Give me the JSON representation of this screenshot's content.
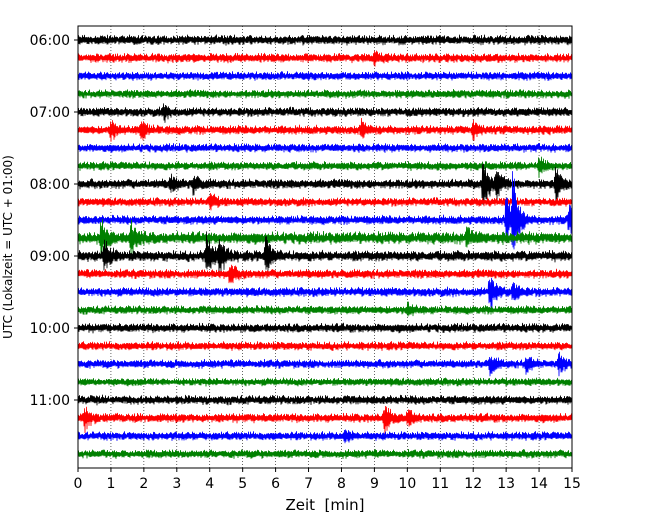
{
  "chart_data": {
    "type": "line",
    "chart_kind": "helicorder (seismogram drum plot)",
    "xlabel": "Zeit  [min]",
    "ylabel": "UTC (Lokalzeit = UTC + 01:00)",
    "xlim": [
      0,
      15
    ],
    "x_ticks": [
      0,
      1,
      2,
      3,
      4,
      5,
      6,
      7,
      8,
      9,
      10,
      11,
      12,
      13,
      14,
      15
    ],
    "x_tick_labels": [
      "0",
      "1",
      "2",
      "3",
      "4",
      "5",
      "6",
      "7",
      "8",
      "9",
      "10",
      "11",
      "12",
      "13",
      "14",
      "15"
    ],
    "y_tick_labels": [
      "06:00",
      "07:00",
      "08:00",
      "09:00",
      "10:00",
      "11:00"
    ],
    "grid": "vertical dotted lines at each minute",
    "line_minutes": 15,
    "trace_colors": [
      "#000000",
      "#ff0000",
      "#0000ff",
      "#008000"
    ],
    "trace_start_times": [
      "06:00",
      "06:15",
      "06:30",
      "06:45",
      "07:00",
      "07:15",
      "07:30",
      "07:45",
      "08:00",
      "08:15",
      "08:30",
      "08:45",
      "09:00",
      "09:15",
      "09:30",
      "09:45",
      "10:00",
      "10:15",
      "10:30",
      "10:45",
      "11:00",
      "11:15",
      "11:30",
      "11:45"
    ],
    "noise_amplitude": [
      0.32,
      0.3,
      0.28,
      0.28,
      0.3,
      0.3,
      0.28,
      0.28,
      0.32,
      0.28,
      0.3,
      0.4,
      0.35,
      0.3,
      0.3,
      0.28,
      0.3,
      0.28,
      0.28,
      0.26,
      0.3,
      0.3,
      0.28,
      0.28
    ],
    "events": [
      {
        "trace": 1,
        "minute": 9.0,
        "amplitude": 0.35
      },
      {
        "trace": 4,
        "minute": 2.6,
        "amplitude": 0.4
      },
      {
        "trace": 5,
        "minute": 1.0,
        "amplitude": 0.6
      },
      {
        "trace": 5,
        "minute": 1.9,
        "amplitude": 0.6
      },
      {
        "trace": 5,
        "minute": 8.6,
        "amplitude": 0.5
      },
      {
        "trace": 5,
        "minute": 12.0,
        "amplitude": 0.45
      },
      {
        "trace": 7,
        "minute": 14.0,
        "amplitude": 0.5
      },
      {
        "trace": 8,
        "minute": 2.8,
        "amplitude": 0.5
      },
      {
        "trace": 8,
        "minute": 3.5,
        "amplitude": 0.5
      },
      {
        "trace": 8,
        "minute": 12.3,
        "amplitude": 1.6
      },
      {
        "trace": 8,
        "minute": 12.7,
        "amplitude": 0.8
      },
      {
        "trace": 8,
        "minute": 14.5,
        "amplitude": 1.0
      },
      {
        "trace": 9,
        "minute": 4.0,
        "amplitude": 0.5
      },
      {
        "trace": 10,
        "minute": 13.0,
        "amplitude": 1.6
      },
      {
        "trace": 10,
        "minute": 13.2,
        "amplitude": 2.6
      },
      {
        "trace": 10,
        "minute": 14.9,
        "amplitude": 1.0
      },
      {
        "trace": 11,
        "minute": 0.7,
        "amplitude": 1.0
      },
      {
        "trace": 11,
        "minute": 1.6,
        "amplitude": 1.0
      },
      {
        "trace": 11,
        "minute": 11.8,
        "amplitude": 0.5
      },
      {
        "trace": 12,
        "minute": 0.8,
        "amplitude": 0.9
      },
      {
        "trace": 12,
        "minute": 3.9,
        "amplitude": 1.5
      },
      {
        "trace": 12,
        "minute": 4.3,
        "amplitude": 1.0
      },
      {
        "trace": 12,
        "minute": 5.7,
        "amplitude": 1.0
      },
      {
        "trace": 13,
        "minute": 4.6,
        "amplitude": 0.6
      },
      {
        "trace": 14,
        "minute": 12.5,
        "amplitude": 1.2
      },
      {
        "trace": 14,
        "minute": 13.2,
        "amplitude": 0.6
      },
      {
        "trace": 15,
        "minute": 10.0,
        "amplitude": 0.4
      },
      {
        "trace": 18,
        "minute": 12.5,
        "amplitude": 0.6
      },
      {
        "trace": 18,
        "minute": 13.6,
        "amplitude": 0.5
      },
      {
        "trace": 18,
        "minute": 14.6,
        "amplitude": 0.5
      },
      {
        "trace": 21,
        "minute": 0.2,
        "amplitude": 0.7
      },
      {
        "trace": 21,
        "minute": 9.3,
        "amplitude": 0.9
      },
      {
        "trace": 21,
        "minute": 10.0,
        "amplitude": 0.5
      },
      {
        "trace": 22,
        "minute": 8.1,
        "amplitude": 0.35
      }
    ]
  }
}
